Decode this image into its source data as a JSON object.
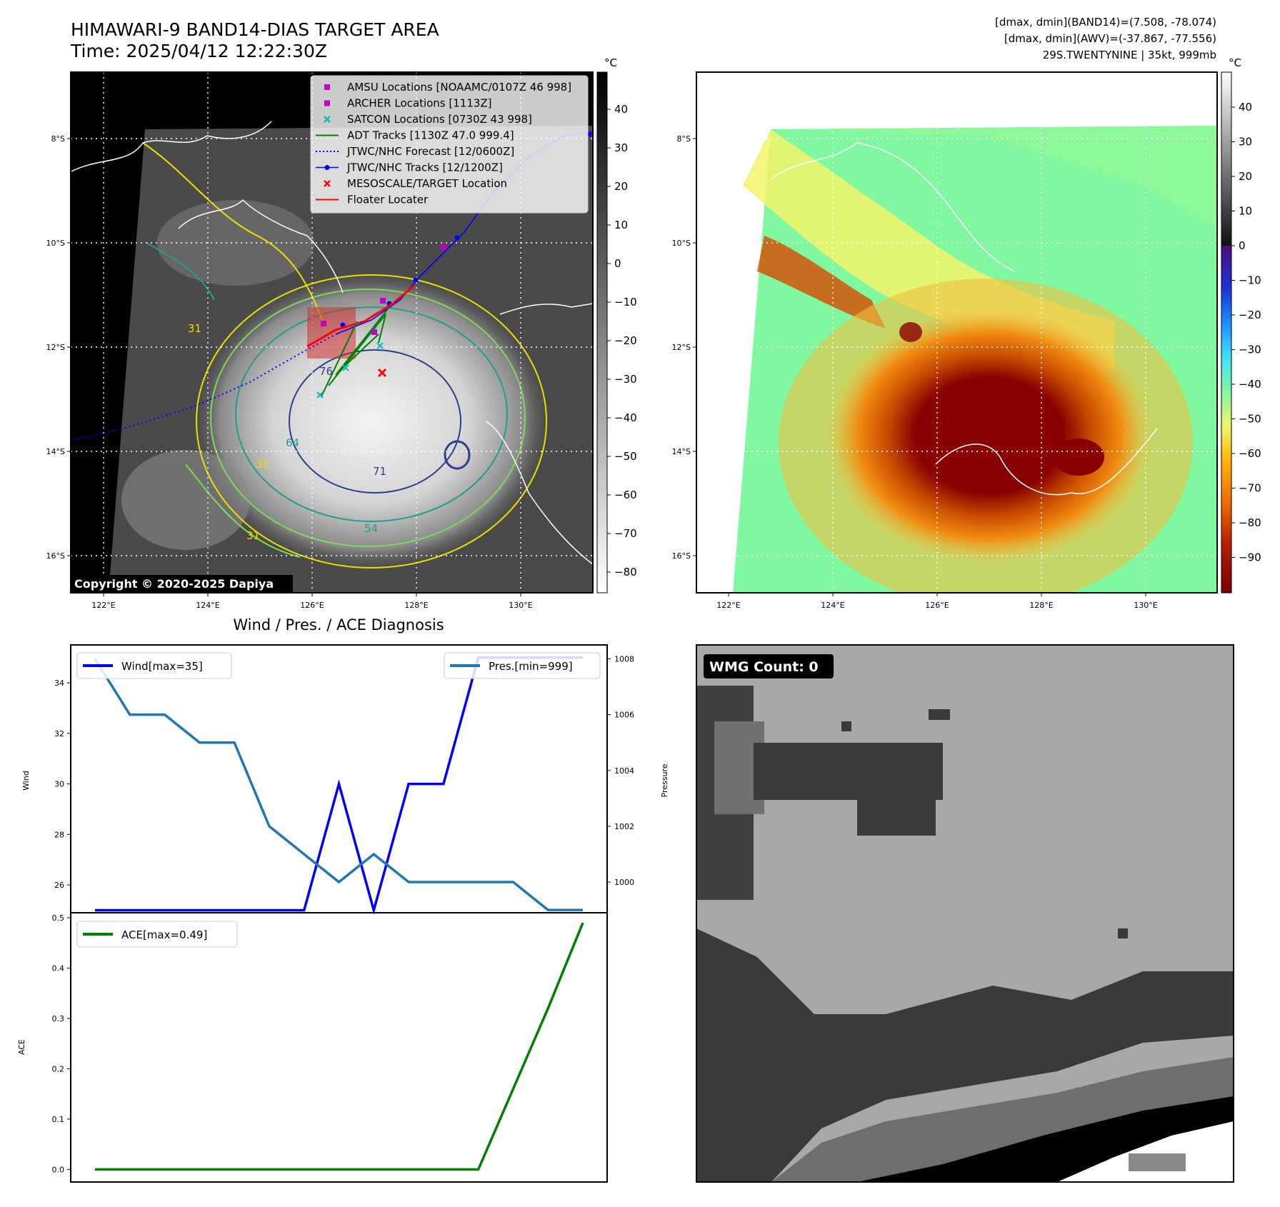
{
  "header": {
    "title_line1": "HIMAWARI-9 BAND14-DIAS TARGET AREA",
    "title_line2": "Time: 2025/04/12 12:22:30Z",
    "info_line1": "[dmax, dmin](BAND14)=(7.508, -78.074)",
    "info_line2": "[dmax, dmin](AWV)=(-37.867, -77.556)",
    "info_line3": "29S.TWENTYNINE | 35kt, 999mb"
  },
  "map_ir": {
    "lat_ticks": [
      "8°S",
      "10°S",
      "12°S",
      "14°S",
      "16°S"
    ],
    "lon_ticks": [
      "122°E",
      "124°E",
      "126°E",
      "128°E",
      "130°E"
    ],
    "copyright": "Copyright © 2020-2025 Dapiya",
    "contour_labels": [
      "31",
      "31",
      "76",
      "64",
      "31",
      "54",
      "71"
    ],
    "colorbar": {
      "unit": "°C",
      "ticks": [
        "40",
        "30",
        "20",
        "10",
        "0",
        "−10",
        "−20",
        "−30",
        "−40",
        "−50",
        "−60",
        "−70",
        "−80"
      ]
    },
    "legend": [
      {
        "label": "AMSU Locations [NOAAMC/0107Z 46 998]",
        "color": "#c000c0",
        "marker": "square"
      },
      {
        "label": "ARCHER Locations [1113Z]",
        "color": "#c000c0",
        "marker": "square"
      },
      {
        "label": "SATCON Locations [0730Z 43 998]",
        "color": "#00bcbc",
        "marker": "x"
      },
      {
        "label": "ADT Tracks [1130Z 47.0 999.4]",
        "color": "#008000",
        "marker": "line"
      },
      {
        "label": "JTWC/NHC Forecast [12/0600Z]",
        "color": "#0000ff",
        "marker": "dotted"
      },
      {
        "label": "JTWC/NHC Tracks [12/1200Z]",
        "color": "#0000ff",
        "marker": "line-dot"
      },
      {
        "label": "MESOSCALE/TARGET Location",
        "color": "#ff0000",
        "marker": "x"
      },
      {
        "label": "Floater Locater",
        "color": "#ff0000",
        "marker": "line"
      }
    ]
  },
  "map_awv": {
    "lat_ticks": [
      "8°S",
      "10°S",
      "12°S",
      "14°S",
      "16°S"
    ],
    "lon_ticks": [
      "122°E",
      "124°E",
      "126°E",
      "128°E",
      "130°E"
    ],
    "colorbar": {
      "unit": "°C",
      "ticks": [
        "40",
        "30",
        "20",
        "10",
        "0",
        "−10",
        "−20",
        "−30",
        "−40",
        "−50",
        "−60",
        "−70",
        "−80",
        "−90"
      ]
    }
  },
  "wmg": {
    "label": "WMG Count: 0"
  },
  "chart_data": [
    {
      "type": "line",
      "title": "Wind / Pres. / ACE Diagnosis",
      "ylabel": "Wind",
      "ylabel_right": "Pressure",
      "x": [
        0,
        1,
        2,
        3,
        4,
        5,
        6,
        7,
        8,
        9,
        10,
        11,
        12,
        13,
        14
      ],
      "ylim": [
        24.9,
        35.5
      ],
      "ylim_right": [
        998.9,
        1008.5
      ],
      "yticks": [
        "26",
        "28",
        "30",
        "32",
        "34"
      ],
      "yticks_right": [
        "1000",
        "1002",
        "1004",
        "1006",
        "1008"
      ],
      "series": [
        {
          "name": "Wind[max=35]",
          "color": "#0000ff",
          "axis": "left",
          "values": [
            25,
            25,
            25,
            25,
            25,
            25,
            25,
            30,
            25,
            30,
            30,
            35,
            35,
            35,
            35
          ]
        },
        {
          "name": "Pres.[min=999]",
          "color": "#1f77b4",
          "axis": "right",
          "values": [
            1008,
            1006,
            1006,
            1005,
            1005,
            1002,
            1001,
            1000,
            1001,
            1000,
            1000,
            1000,
            1000,
            999,
            999
          ]
        }
      ],
      "legend": [
        "top-left",
        "top-right"
      ]
    },
    {
      "type": "line",
      "ylabel": "ACE",
      "x": [
        0,
        1,
        2,
        3,
        4,
        5,
        6,
        7,
        8,
        9,
        10,
        11,
        12,
        13,
        14
      ],
      "ylim": [
        -0.025,
        0.51
      ],
      "yticks": [
        "0.0",
        "0.1",
        "0.2",
        "0.3",
        "0.4",
        "0.5"
      ],
      "series": [
        {
          "name": "ACE[max=0.49]",
          "color": "#008000",
          "values": [
            0,
            0,
            0,
            0,
            0,
            0,
            0,
            0,
            0,
            0,
            0,
            0,
            0.16,
            0.32,
            0.49
          ]
        }
      ],
      "legend": "top-left"
    }
  ]
}
